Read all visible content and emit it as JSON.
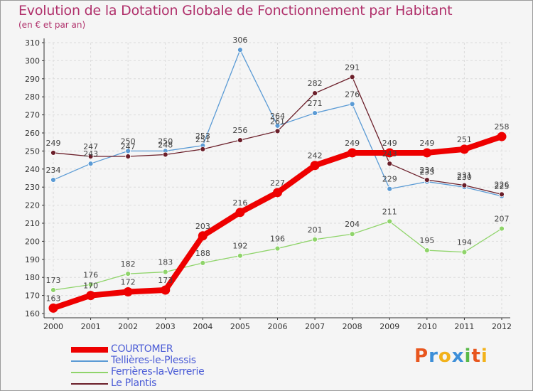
{
  "title": "Evolution de la Dotation Globale de Fonctionnement par Habitant",
  "subtitle": "(en € et par an)",
  "logo": {
    "text": "Proxiti",
    "colors": [
      "#e8561e",
      "#3d8fd8",
      "#f2b21b",
      "#3d8fd8",
      "#58b947",
      "#e8561e",
      "#f2b21b"
    ]
  },
  "chart_data": {
    "type": "line",
    "x": [
      "2000",
      "2001",
      "2002",
      "2003",
      "2004",
      "2005",
      "2006",
      "2007",
      "2008",
      "2009",
      "2010",
      "2011",
      "2012"
    ],
    "ylim": [
      160,
      310
    ],
    "yticks": [
      160,
      170,
      180,
      190,
      200,
      210,
      220,
      230,
      240,
      250,
      260,
      270,
      280,
      290,
      300,
      310
    ],
    "grid": true,
    "legend_position": "bottom-left",
    "series": [
      {
        "name": "Tellières-le-Plessis",
        "color": "#5b9bd5",
        "values": [
          234,
          243,
          250,
          250,
          253,
          306,
          264,
          271,
          276,
          229,
          233,
          230,
          225
        ]
      },
      {
        "name": "Ferrières-la-Verrerie",
        "color": "#8fd46a",
        "values": [
          173,
          176,
          182,
          183,
          188,
          192,
          196,
          201,
          204,
          211,
          195,
          194,
          207
        ]
      },
      {
        "name": "Le Plantis",
        "color": "#6b1f2a",
        "values": [
          249,
          247,
          247,
          248,
          251,
          256,
          261,
          282,
          291,
          243,
          234,
          231,
          226
        ]
      },
      {
        "name": "COURTOMER",
        "color": "#ee0000",
        "values": [
          163,
          170,
          172,
          173,
          203,
          216,
          227,
          242,
          249,
          249,
          249,
          251,
          258
        ]
      }
    ],
    "legend_order": [
      "COURTOMER",
      "Tellières-le-Plessis",
      "Ferrières-la-Verrerie",
      "Le Plantis"
    ]
  }
}
